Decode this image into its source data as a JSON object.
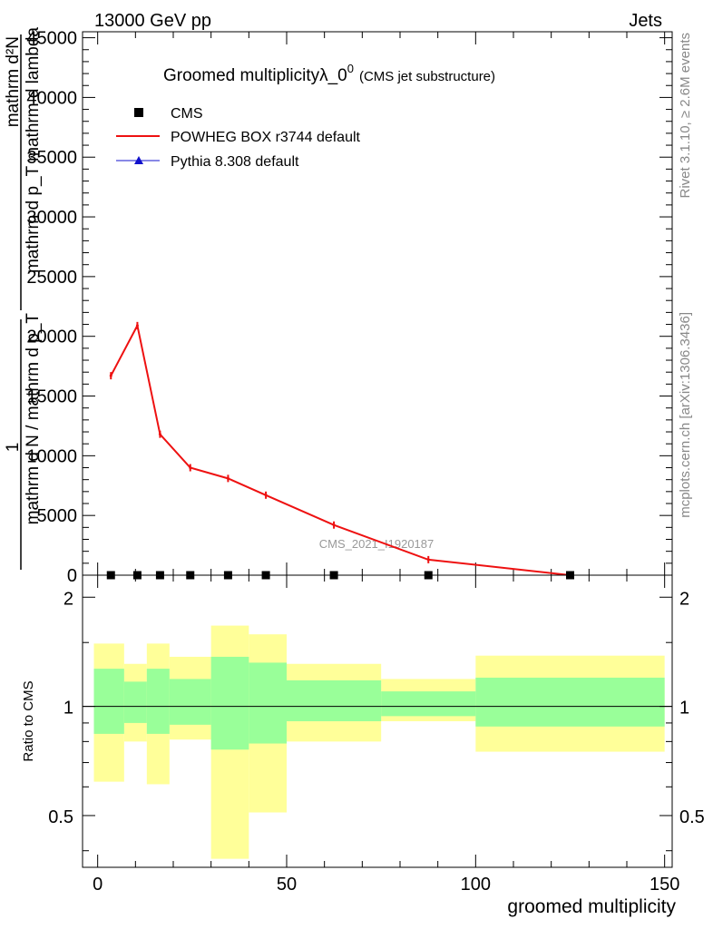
{
  "header": {
    "left": "13000 GeV pp",
    "right": "Jets"
  },
  "side_labels": {
    "top": "Rivet 3.1.10, ≥ 2.6M events",
    "bottom": "mcplots.cern.ch [arXiv:1306.3436]"
  },
  "main_plot": {
    "title_main": "Groomed multiplicityλ_0",
    "title_sup": "0",
    "title_small": "(CMS jet substructure)",
    "ylabel_lines": [
      "mathrm d²N",
      "mathrm d p_T mathrm d lambda",
      "1",
      "mathrm d N / mathrm d p_T"
    ],
    "watermark": "CMS_2021_I1920187"
  },
  "ratio_plot": {
    "ylabel": "Ratio to CMS",
    "xlabel": "groomed multiplicity"
  },
  "colors": {
    "cms": "#000000",
    "powheg": "#ee1111",
    "pythia": "#1111cc",
    "band_inner": "#99ff99",
    "band_outer": "#ffff99"
  },
  "chart_data": [
    {
      "type": "line",
      "title": "Groomed multiplicityλ_0^0 (CMS jet substructure)",
      "xlabel": "",
      "ylabel": "mathrm d²N / mathrm d p_T mathrm d lambda × 1 / (mathrm d N / mathrm d p_T)",
      "xlim": [
        -4,
        152
      ],
      "ylim": [
        0,
        45500
      ],
      "yticks": [
        0,
        5000,
        10000,
        15000,
        20000,
        25000,
        30000,
        35000,
        40000,
        45000
      ],
      "ytick_labels": [
        "0",
        "5000",
        "10000",
        "15000",
        "20000",
        "25000",
        "30000",
        "35000",
        "40000",
        "45000"
      ],
      "legend_position": "top-left",
      "series": [
        {
          "name": "CMS",
          "marker": "square",
          "x": [
            3.5,
            10.5,
            16.5,
            24.5,
            34.5,
            44.5,
            62.5,
            87.5,
            125
          ],
          "y": [
            0,
            0,
            0,
            0,
            0,
            0,
            0,
            0,
            0
          ]
        },
        {
          "name": "POWHEG BOX r3744 default",
          "marker": "line",
          "x": [
            3.5,
            10.5,
            16.5,
            24.5,
            34.5,
            44.5,
            62.5,
            87.5,
            125
          ],
          "y": [
            16700,
            20900,
            11800,
            9000,
            8100,
            6700,
            4200,
            1300,
            0
          ]
        },
        {
          "name": "Pythia 8.308 default",
          "marker": "triangle",
          "x": [],
          "y": []
        }
      ]
    },
    {
      "type": "area",
      "xlabel": "groomed multiplicity",
      "ylabel": "Ratio to CMS",
      "xlim": [
        -4,
        152
      ],
      "ylim": [
        0.36,
        2.3
      ],
      "xticks": [
        0,
        50,
        100,
        150
      ],
      "xtick_labels": [
        "0",
        "50",
        "100",
        "150"
      ],
      "yticks": [
        0.5,
        1,
        2
      ],
      "ytick_labels": [
        "0.5",
        "1",
        "2"
      ],
      "bins": [
        {
          "x0": -1,
          "x1": 7,
          "inner": [
            0.84,
            1.27
          ],
          "outer": [
            0.62,
            1.49
          ]
        },
        {
          "x0": 7,
          "x1": 13,
          "inner": [
            0.9,
            1.17
          ],
          "outer": [
            0.8,
            1.31
          ]
        },
        {
          "x0": 13,
          "x1": 19,
          "inner": [
            0.84,
            1.27
          ],
          "outer": [
            0.61,
            1.49
          ]
        },
        {
          "x0": 19,
          "x1": 30,
          "inner": [
            0.89,
            1.19
          ],
          "outer": [
            0.81,
            1.37
          ]
        },
        {
          "x0": 30,
          "x1": 40,
          "inner": [
            0.76,
            1.37
          ],
          "outer": [
            0.38,
            1.67
          ]
        },
        {
          "x0": 40,
          "x1": 50,
          "inner": [
            0.79,
            1.32
          ],
          "outer": [
            0.51,
            1.58
          ]
        },
        {
          "x0": 50,
          "x1": 75,
          "inner": [
            0.91,
            1.18
          ],
          "outer": [
            0.8,
            1.31
          ]
        },
        {
          "x0": 75,
          "x1": 100,
          "inner": [
            0.94,
            1.1
          ],
          "outer": [
            0.91,
            1.19
          ]
        },
        {
          "x0": 100,
          "x1": 150,
          "inner": [
            0.88,
            1.2
          ],
          "outer": [
            0.75,
            1.38
          ]
        }
      ],
      "reference_line": 1
    }
  ]
}
